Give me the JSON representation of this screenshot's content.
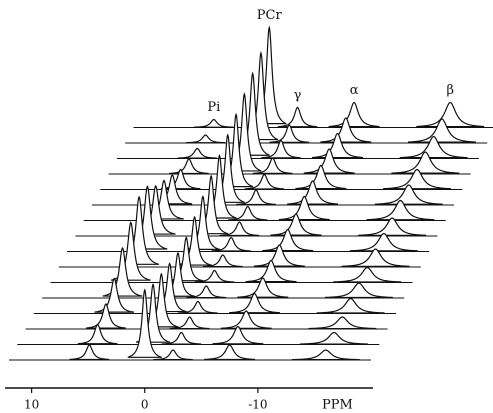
{
  "chart_data": {
    "type": "waterfall",
    "categories": [
      "Pi",
      "PCr",
      "γ",
      "α",
      "β"
    ],
    "x": [
      4.9,
      0,
      -2.5,
      -7.5,
      -16
    ],
    "series": [
      {
        "values": [
          15,
          70,
          10,
          15,
          10
        ]
      },
      {
        "values": [
          20,
          60,
          12,
          18,
          12
        ]
      },
      {
        "values": [
          25,
          55,
          12,
          18,
          12
        ]
      },
      {
        "values": [
          35,
          50,
          12,
          20,
          15
        ]
      },
      {
        "values": [
          50,
          45,
          12,
          20,
          15
        ]
      },
      {
        "values": [
          60,
          45,
          12,
          22,
          15
        ]
      },
      {
        "values": [
          70,
          50,
          12,
          22,
          18
        ]
      },
      {
        "values": [
          65,
          55,
          14,
          22,
          18
        ]
      },
      {
        "values": [
          50,
          60,
          14,
          22,
          18
        ]
      },
      {
        "values": [
          40,
          65,
          14,
          24,
          20
        ]
      },
      {
        "values": [
          30,
          70,
          15,
          24,
          20
        ]
      },
      {
        "values": [
          20,
          75,
          15,
          24,
          20
        ]
      },
      {
        "values": [
          15,
          80,
          16,
          25,
          22
        ]
      },
      {
        "values": [
          10,
          85,
          18,
          25,
          22
        ]
      },
      {
        "values": [
          8,
          90,
          18,
          25,
          24
        ]
      },
      {
        "values": [
          8,
          100,
          20,
          25,
          25
        ]
      }
    ],
    "color": "#111111",
    "xlim": [
      12,
      -20
    ],
    "xticks": [
      10,
      0,
      -10
    ],
    "xlabel": "PPM"
  }
}
